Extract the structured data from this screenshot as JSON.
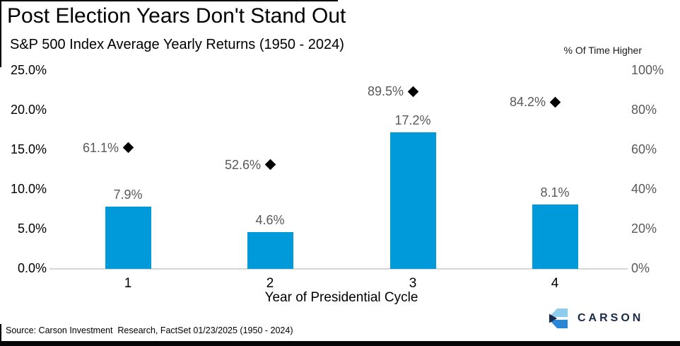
{
  "title": "Post Election Years Don't Stand Out",
  "subtitle": "S&P 500 Index Average Yearly Returns (1950 - 2024)",
  "source": "Source: Carson Investment  Research, FactSet 01/23/2025 (1950 - 2024)",
  "logo": {
    "text": "CARSON",
    "navy": "#1B2A4A",
    "light_blue": "#8FCDEF",
    "blue": "#2C86D6"
  },
  "colors": {
    "bar": "#0099DA",
    "marker": "#000000",
    "gray_label": "#595959",
    "axis_line": "#D6D6D6"
  },
  "chart_data": {
    "type": "bar",
    "title": "Post Election Years Don't Stand Out",
    "subtitle": "S&P 500 Index Average Yearly Returns (1950 - 2024)",
    "categories": [
      "1",
      "2",
      "3",
      "4"
    ],
    "xlabel": "Year of Presidential Cycle",
    "grid": false,
    "legend": false,
    "series": [
      {
        "name": "S&P 500 average yearly return",
        "type": "bar",
        "axis": "left",
        "values": [
          7.9,
          4.6,
          17.2,
          8.1
        ],
        "labels": [
          "7.9%",
          "4.6%",
          "17.2%",
          "8.1%"
        ],
        "color": "#0099DA"
      },
      {
        "name": "% Of Time Higher",
        "type": "scatter",
        "marker": "diamond",
        "axis": "right",
        "values": [
          61.1,
          52.6,
          89.5,
          84.2
        ],
        "labels": [
          "61.1%",
          "52.6%",
          "89.5%",
          "84.2%"
        ],
        "color": "#000000"
      }
    ],
    "left_axis": {
      "range": [
        0,
        25
      ],
      "ticks": [
        "0.0%",
        "5.0%",
        "10.0%",
        "15.0%",
        "20.0%",
        "25.0%"
      ]
    },
    "right_axis": {
      "title": "% Of Time Higher",
      "range": [
        0,
        100
      ],
      "ticks": [
        "0%",
        "20%",
        "40%",
        "60%",
        "80%",
        "100%"
      ]
    }
  }
}
